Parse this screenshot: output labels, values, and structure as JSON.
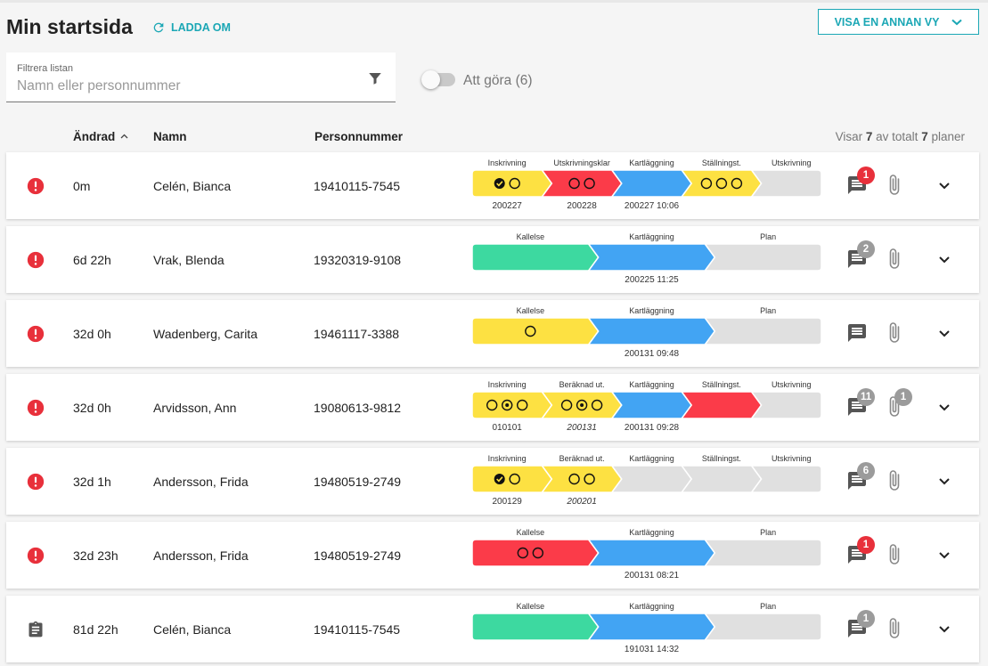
{
  "header": {
    "title": "Min startsida",
    "reload_label": "LADDA OM",
    "view_button_label": "VISA EN ANNAN VY"
  },
  "filter": {
    "label": "Filtrera listan",
    "placeholder": "Namn eller personnummer",
    "value": ""
  },
  "todo_toggle": {
    "label": "Att göra (6)",
    "checked": false
  },
  "table": {
    "columns": {
      "changed": "Ändrad",
      "name": "Namn",
      "pnr": "Personnummer"
    },
    "sort_indicator": "^",
    "info_prefix": "Visar",
    "shown": "7",
    "info_mid": "av totalt",
    "total": "7",
    "info_suffix": "planer"
  },
  "colors": {
    "yellow": "#fde142",
    "red": "#fb3b49",
    "blue": "#42a4f3",
    "green": "#3dd9a0",
    "grey": "#e0e0e0",
    "accent": "#1ba7b5",
    "status_red": "#e8303b"
  },
  "rows": [
    {
      "status": "alert",
      "changed": "0m",
      "name": "Celén, Bianca",
      "pnr": "19410115-7545",
      "comments": "1",
      "comments_color": "red",
      "attachments": "",
      "steps": [
        {
          "label": "Inskrivning",
          "color": "yellow",
          "circles": [
            "check",
            "empty"
          ],
          "date": "200227",
          "italic": false
        },
        {
          "label": "Utskrivningsklar",
          "color": "red",
          "circles": [
            "empty",
            "empty"
          ],
          "date": "200228",
          "italic": false
        },
        {
          "label": "Kartläggning",
          "color": "blue",
          "circles": [],
          "date": "200227 10:06",
          "italic": false
        },
        {
          "label": "Ställningst.",
          "color": "yellow",
          "circles": [
            "empty",
            "empty",
            "empty"
          ],
          "date": "",
          "italic": false
        },
        {
          "label": "Utskrivning",
          "color": "grey",
          "circles": [],
          "date": "",
          "italic": false
        }
      ]
    },
    {
      "status": "alert",
      "changed": "6d 22h",
      "name": "Vrak, Blenda",
      "pnr": "19320319-9108",
      "comments": "2",
      "comments_color": "grey",
      "attachments": "",
      "steps": [
        {
          "label": "Kallelse",
          "color": "green",
          "circles": [],
          "date": "",
          "italic": false
        },
        {
          "label": "Kartläggning",
          "color": "blue",
          "circles": [],
          "date": "200225 11:25",
          "italic": false
        },
        {
          "label": "Plan",
          "color": "grey",
          "circles": [],
          "date": "",
          "italic": false
        }
      ]
    },
    {
      "status": "alert",
      "changed": "32d 0h",
      "name": "Wadenberg, Carita",
      "pnr": "19461117-3388",
      "comments": "",
      "comments_color": "grey",
      "attachments": "",
      "steps": [
        {
          "label": "Kallelse",
          "color": "yellow",
          "circles": [
            "empty"
          ],
          "date": "",
          "italic": false
        },
        {
          "label": "Kartläggning",
          "color": "blue",
          "circles": [],
          "date": "200131 09:48",
          "italic": false
        },
        {
          "label": "Plan",
          "color": "grey",
          "circles": [],
          "date": "",
          "italic": false
        }
      ]
    },
    {
      "status": "alert",
      "changed": "32d 0h",
      "name": "Arvidsson, Ann",
      "pnr": "19080613-9812",
      "comments": "11",
      "comments_color": "grey",
      "attachments": "1",
      "steps": [
        {
          "label": "Inskrivning",
          "color": "yellow",
          "circles": [
            "empty",
            "dot",
            "empty"
          ],
          "date": "010101",
          "italic": false
        },
        {
          "label": "Beräknad ut.",
          "color": "yellow",
          "circles": [
            "empty",
            "dot",
            "empty"
          ],
          "date": "200131",
          "italic": true
        },
        {
          "label": "Kartläggning",
          "color": "blue",
          "circles": [],
          "date": "200131 09:28",
          "italic": false
        },
        {
          "label": "Ställningst.",
          "color": "red",
          "circles": [],
          "date": "",
          "italic": false
        },
        {
          "label": "Utskrivning",
          "color": "grey",
          "circles": [],
          "date": "",
          "italic": false
        }
      ]
    },
    {
      "status": "alert",
      "changed": "32d 1h",
      "name": "Andersson, Frida",
      "pnr": "19480519-2749",
      "comments": "6",
      "comments_color": "grey",
      "attachments": "",
      "steps": [
        {
          "label": "Inskrivning",
          "color": "yellow",
          "circles": [
            "check",
            "empty"
          ],
          "date": "200129",
          "italic": false
        },
        {
          "label": "Beräknad ut.",
          "color": "yellow",
          "circles": [
            "empty",
            "empty"
          ],
          "date": "200201",
          "italic": true
        },
        {
          "label": "Kartläggning",
          "color": "grey",
          "circles": [],
          "date": "",
          "italic": false
        },
        {
          "label": "Ställningst.",
          "color": "grey",
          "circles": [],
          "date": "",
          "italic": false
        },
        {
          "label": "Utskrivning",
          "color": "grey",
          "circles": [],
          "date": "",
          "italic": false
        }
      ]
    },
    {
      "status": "alert",
      "changed": "32d 23h",
      "name": "Andersson, Frida",
      "pnr": "19480519-2749",
      "comments": "1",
      "comments_color": "red",
      "attachments": "",
      "steps": [
        {
          "label": "Kallelse",
          "color": "red",
          "circles": [
            "empty",
            "empty"
          ],
          "date": "",
          "italic": false
        },
        {
          "label": "Kartläggning",
          "color": "blue",
          "circles": [],
          "date": "200131 08:21",
          "italic": false
        },
        {
          "label": "Plan",
          "color": "grey",
          "circles": [],
          "date": "",
          "italic": false
        }
      ]
    },
    {
      "status": "clipboard",
      "changed": "81d 22h",
      "name": "Celén, Bianca",
      "pnr": "19410115-7545",
      "comments": "1",
      "comments_color": "grey",
      "attachments": "",
      "steps": [
        {
          "label": "Kallelse",
          "color": "green",
          "circles": [],
          "date": "",
          "italic": false
        },
        {
          "label": "Kartläggning",
          "color": "blue",
          "circles": [],
          "date": "191031 14:32",
          "italic": false
        },
        {
          "label": "Plan",
          "color": "grey",
          "circles": [],
          "date": "",
          "italic": false
        }
      ]
    }
  ]
}
